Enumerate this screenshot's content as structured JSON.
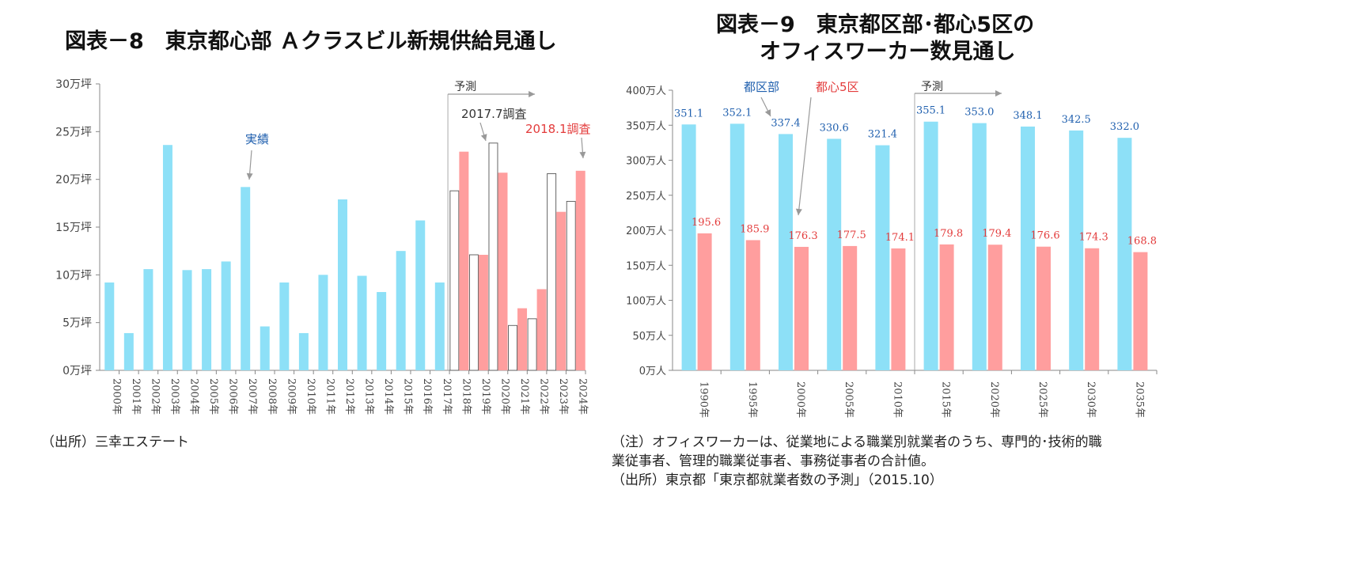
{
  "chart_data": [
    {
      "type": "bar",
      "title": "図表－8　東京都心部 Ａクラスビル新規供給見通し",
      "ytick_labels": [
        "0万坪",
        "5万坪",
        "10万坪",
        "15万坪",
        "20万坪",
        "25万坪",
        "30万坪"
      ],
      "ylim": [
        0,
        30
      ],
      "categories": [
        "2000年",
        "2001年",
        "2002年",
        "2003年",
        "2004年",
        "2005年",
        "2006年",
        "2007年",
        "2008年",
        "2009年",
        "2010年",
        "2011年",
        "2012年",
        "2013年",
        "2014年",
        "2015年",
        "2016年",
        "2017年",
        "2018年",
        "2019年",
        "2020年",
        "2021年",
        "2022年",
        "2023年",
        "2024年"
      ],
      "series": [
        {
          "name": "実績",
          "color": "#8de0f7",
          "values": [
            9.2,
            3.9,
            10.6,
            23.6,
            10.5,
            10.6,
            11.4,
            19.2,
            4.6,
            9.2,
            3.9,
            10.0,
            17.9,
            9.9,
            8.2,
            12.5,
            15.7,
            9.2,
            null,
            null,
            null,
            null,
            null,
            null,
            null
          ]
        },
        {
          "name": "2017.7調査",
          "color": "#ffffff",
          "values": [
            null,
            null,
            null,
            null,
            null,
            null,
            null,
            null,
            null,
            null,
            null,
            null,
            null,
            null,
            null,
            null,
            null,
            null,
            18.8,
            12.1,
            23.8,
            4.7,
            5.4,
            20.6,
            17.7
          ]
        },
        {
          "name": "2018.1調査",
          "color": "#ff9e9e",
          "values": [
            null,
            null,
            null,
            null,
            null,
            null,
            null,
            null,
            null,
            null,
            null,
            null,
            null,
            null,
            null,
            null,
            null,
            null,
            22.9,
            12.1,
            20.7,
            6.5,
            8.5,
            16.6,
            20.9
          ]
        }
      ],
      "annotations": [
        "予測",
        "実績",
        "2017.7調査",
        "2018.1調査"
      ],
      "source": "（出所）三幸エステート"
    },
    {
      "type": "bar",
      "title_line1": "図表－9　東京都区部･都心5区の",
      "title_line2": "オフィスワーカー数見通し",
      "ytick_labels": [
        "0万人",
        "50万人",
        "100万人",
        "150万人",
        "200万人",
        "250万人",
        "300万人",
        "350万人",
        "400万人"
      ],
      "ylim": [
        0,
        400
      ],
      "categories": [
        "1990年",
        "1995年",
        "2000年",
        "2005年",
        "2010年",
        "2015年",
        "2020年",
        "2025年",
        "2030年",
        "2035年"
      ],
      "series": [
        {
          "name": "都区部",
          "color": "#8de0f7",
          "values": [
            351.1,
            352.1,
            337.4,
            330.6,
            321.4,
            355.1,
            353.0,
            348.1,
            342.5,
            332.0
          ],
          "labels": [
            "351.1",
            "352.1",
            "337.4",
            "330.6",
            "321.4",
            "355.1",
            "353.0",
            "348.1",
            "342.5",
            "332.0"
          ]
        },
        {
          "name": "都心5区",
          "color": "#ff9e9e",
          "values": [
            195.6,
            185.9,
            176.3,
            177.5,
            174.1,
            179.8,
            179.4,
            176.6,
            174.3,
            168.8
          ],
          "labels": [
            "195.6",
            "185.9",
            "176.3",
            "177.5",
            "174.1",
            "179.8",
            "179.4",
            "176.6",
            "174.3",
            "168.8"
          ]
        }
      ],
      "annotations": [
        "予測",
        "都区部",
        "都心5区"
      ],
      "note_lines": [
        "（注）オフィスワーカーは、従業地による職業別就業者のうち、専門的･技術的職",
        "業従事者、管理的職業従事者、事務従事者の合計値。",
        "（出所）東京都「東京都就業者数の予測」（2015.10）"
      ]
    }
  ],
  "colors": {
    "actual_blue": "#8de0f7",
    "forecast_red": "#ff9e9e",
    "label_blue": "#1f5fae",
    "label_red": "#e33b3b"
  }
}
